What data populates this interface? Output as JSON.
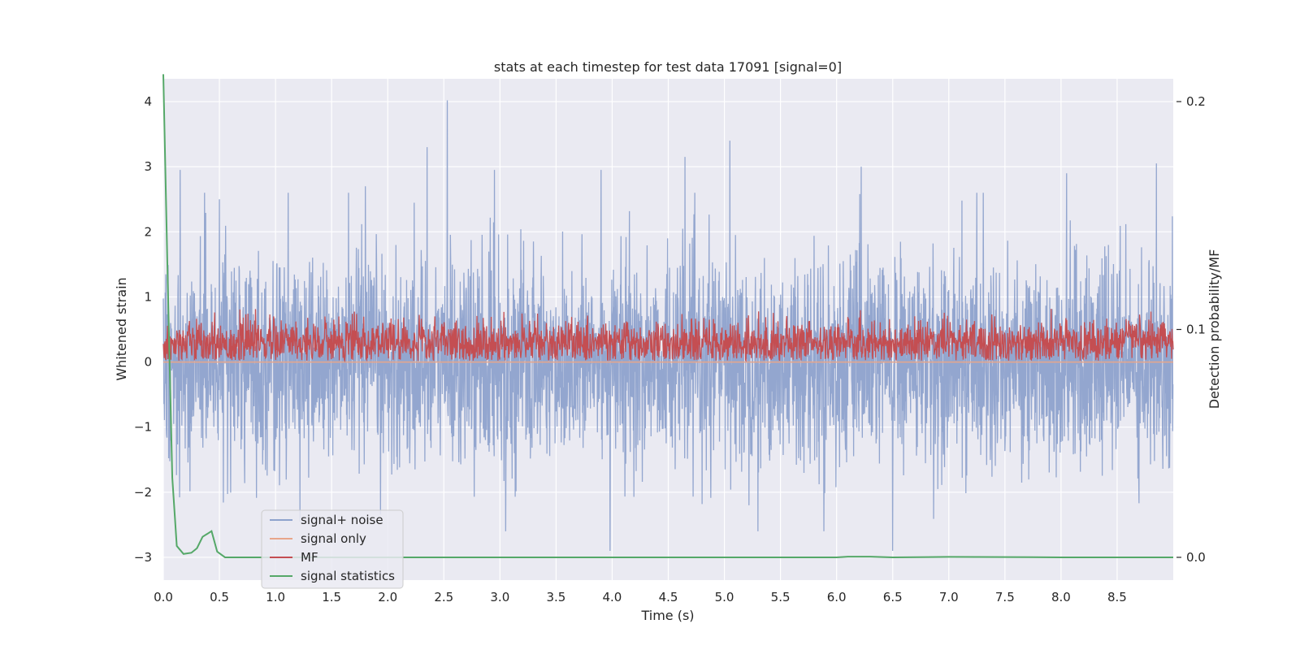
{
  "chart_data": {
    "type": "line",
    "title": "stats at each timestep for test data 17091 [signal=0]",
    "xlabel": "Time (s)",
    "ylabel": "Whitened strain",
    "y2label": "Detection probability/MF",
    "xlim": [
      0,
      9.0
    ],
    "ylim": [
      -3.35,
      4.35
    ],
    "y2lim": [
      -0.01,
      0.21
    ],
    "xticks": [
      0.0,
      0.5,
      1.0,
      1.5,
      2.0,
      2.5,
      3.0,
      3.5,
      4.0,
      4.5,
      5.0,
      5.5,
      6.0,
      6.5,
      7.0,
      7.5,
      8.0,
      8.5
    ],
    "xtick_labels": [
      "0.0",
      "0.5",
      "1.0",
      "1.5",
      "2.0",
      "2.5",
      "3.0",
      "3.5",
      "4.0",
      "4.5",
      "5.0",
      "5.5",
      "6.0",
      "6.5",
      "7.0",
      "7.5",
      "8.0",
      "8.5"
    ],
    "yticks": [
      -3,
      -2,
      -1,
      0,
      1,
      2,
      3,
      4
    ],
    "ytick_labels": [
      "−3",
      "−2",
      "−1",
      "0",
      "1",
      "2",
      "3",
      "4"
    ],
    "y2ticks": [
      0.0,
      0.1,
      0.2
    ],
    "y2tick_labels": [
      "0.0",
      "0.1",
      "0.2"
    ],
    "grid": true,
    "legend_position": "lower-left",
    "series": [
      {
        "name": "signal+ noise",
        "color": "#8ea2cc",
        "axis": "left",
        "description": "noise trace, roughly ±1.5 with spikes up to ±3",
        "spikes": [
          [
            0.15,
            2.95
          ],
          [
            0.5,
            2.5
          ],
          [
            1.65,
            2.6
          ],
          [
            1.8,
            2.7
          ],
          [
            2.35,
            3.3
          ],
          [
            2.53,
            4.02
          ],
          [
            2.95,
            2.95
          ],
          [
            3.05,
            -2.6
          ],
          [
            3.9,
            2.95
          ],
          [
            3.98,
            -2.9
          ],
          [
            4.65,
            3.15
          ],
          [
            5.05,
            3.4
          ],
          [
            5.3,
            -2.6
          ],
          [
            6.22,
            3.0
          ],
          [
            6.5,
            -2.9
          ],
          [
            7.25,
            2.6
          ],
          [
            8.05,
            2.9
          ],
          [
            8.85,
            3.05
          ]
        ]
      },
      {
        "name": "signal only",
        "color": "#e8a58a",
        "axis": "left",
        "x": [
          0,
          9.0
        ],
        "y": [
          0,
          0
        ]
      },
      {
        "name": "MF",
        "color": "#c44e52",
        "axis": "left",
        "description": "matched filter trace between 0 and about 0.9"
      },
      {
        "name": "signal statistics",
        "color": "#55a868",
        "axis": "right",
        "x": [
          0.0,
          0.04,
          0.08,
          0.12,
          0.18,
          0.25,
          0.3,
          0.35,
          0.43,
          0.48,
          0.55,
          1.0,
          2.0,
          3.0,
          4.0,
          5.0,
          6.0,
          6.1,
          6.3,
          6.5,
          7.0,
          8.0,
          9.0
        ],
        "y": [
          0.212,
          0.12,
          0.035,
          0.005,
          0.0015,
          0.002,
          0.004,
          0.009,
          0.0115,
          0.0025,
          0.0,
          0.0,
          0.0,
          0.0,
          0.0,
          0.0,
          0.0,
          0.0003,
          0.0003,
          0.0,
          0.0002,
          0.0,
          0.0
        ]
      }
    ]
  }
}
